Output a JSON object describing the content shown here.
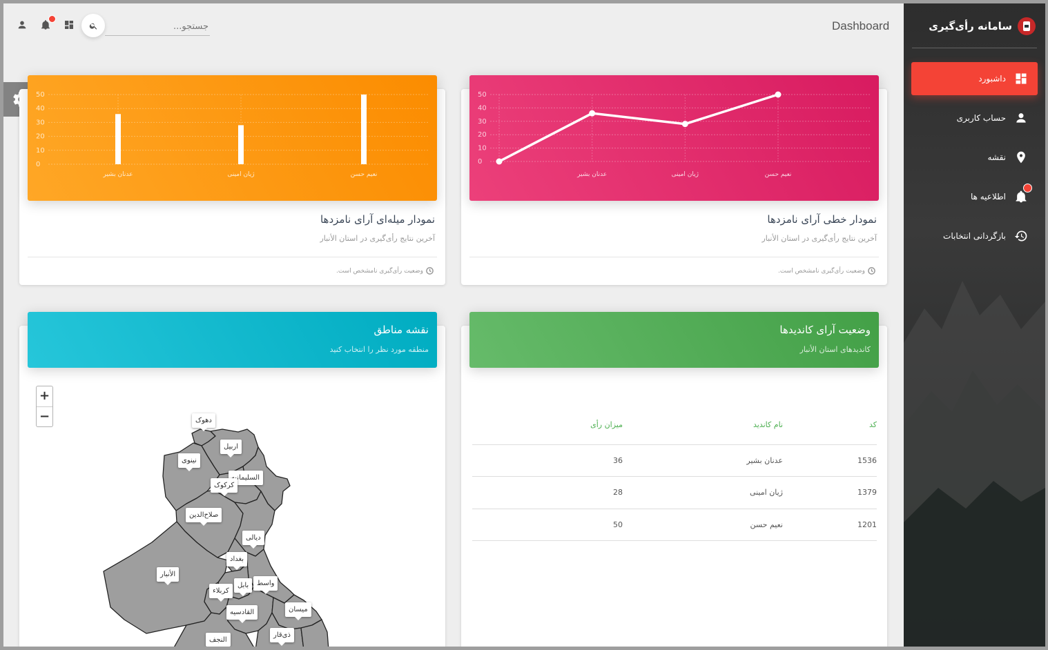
{
  "sidebar": {
    "brand": "سامانه رأی‌گیری",
    "items": [
      {
        "label": "داشبورد",
        "icon": "dashboard-icon",
        "active": true
      },
      {
        "label": "حساب کاربری",
        "icon": "person-icon"
      },
      {
        "label": "نقشه",
        "icon": "location-pin-icon"
      },
      {
        "label": "اطلاعیه ها",
        "icon": "bell-icon"
      },
      {
        "label": "بازگردانی انتخابات",
        "icon": "history-icon"
      }
    ]
  },
  "topbar": {
    "title": "Dashboard",
    "search_placeholder": "جستجو..."
  },
  "colors": {
    "accent_red": "#f44336",
    "orange": "#ff9800",
    "pink": "#e91e63",
    "cyan": "#00bcd4",
    "green": "#4caf50"
  },
  "line_card": {
    "title": "نمودار خطی آرای نامزدها",
    "subtitle": "آخرین نتایج رأی‌گیری در استان الأنبار",
    "footer": "وضعیت رأی‌گیری نامشخص است."
  },
  "bar_card": {
    "title": "نمودار میله‌ای آرای نامزدها",
    "subtitle": "آخرین نتایج رأی‌گیری در استان الأنبار",
    "footer": "وضعیت رأی‌گیری نامشخص است."
  },
  "chart_data": [
    {
      "type": "line",
      "categories": [
        "",
        "عدنان بشیر",
        "ژیان امینی",
        "نعیم حسن"
      ],
      "values": [
        0,
        36,
        28,
        50
      ],
      "yticks": [
        "0",
        "10",
        "20",
        "30",
        "40",
        "50"
      ],
      "ylim": [
        0,
        50
      ],
      "grid": true
    },
    {
      "type": "bar",
      "categories": [
        "عدنان بشیر",
        "ژیان امینی",
        "نعیم حسن"
      ],
      "values": [
        36,
        28,
        50
      ],
      "yticks": [
        "0",
        "10",
        "20",
        "30",
        "40",
        "50"
      ],
      "ylim": [
        0,
        50
      ],
      "grid": true
    }
  ],
  "table_card": {
    "title": "وضعیت آرای کاندیدها",
    "subtitle": "کاندیدهای استان الأنبار",
    "headers": {
      "code": "کد",
      "name": "نام کاندید",
      "votes": "میزان رأی"
    },
    "rows": [
      {
        "code": "1536",
        "name": "عدنان بشیر",
        "votes": "36"
      },
      {
        "code": "1379",
        "name": "ژیان امینی",
        "votes": "28"
      },
      {
        "code": "1201",
        "name": "نعیم حسن",
        "votes": "50"
      }
    ]
  },
  "map_card": {
    "title": "نقشه مناطق",
    "subtitle": "منطقه مورد نظر را انتخاب کنید",
    "zoom_in": "+",
    "zoom_out": "−",
    "regions": [
      "دهوک",
      "اربیل",
      "نینوی",
      "السلیمانیه",
      "کرکوک",
      "صلاح‌الدین",
      "دیالی",
      "بغداد",
      "الأنبار",
      "واسط",
      "بابل",
      "کربلاء",
      "القادسیه",
      "میسان",
      "ذی‌قار",
      "النجف"
    ]
  }
}
